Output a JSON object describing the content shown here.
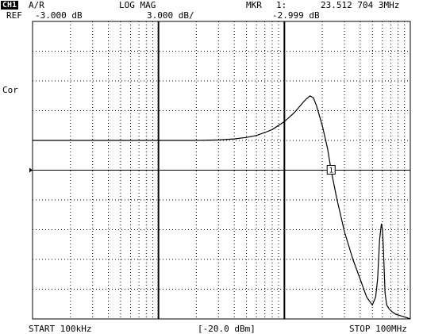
{
  "header": {
    "channel": "CH1",
    "measurement": "A/R",
    "format": "LOG MAG",
    "marker_label": "MKR",
    "marker_index": "1:",
    "marker_freq": "23.512 704 3MHz",
    "ref_label": "REF",
    "ref_value": "-3.000 dB",
    "scale": "3.000 dB/",
    "marker_value": "-2.999 dB"
  },
  "side_label": "Cor",
  "footer": {
    "start": "START 100kHz",
    "power": "[-20.0 dBm]",
    "stop": "STOP 100MHz"
  },
  "marker_badge": "1",
  "chart_data": {
    "type": "line",
    "x_scale": "log",
    "xlim_hz": [
      100000,
      100000000
    ],
    "ylim_db": [
      -18,
      12
    ],
    "grid": true,
    "reference_line_db": -3,
    "marker": {
      "freq_hz": 23512704.3,
      "value_db": -2.999
    },
    "series": [
      {
        "x_hz": [
          100000,
          200000,
          500000,
          1000000,
          2000000,
          3000000,
          4000000,
          5000000,
          6000000,
          7000000,
          8000000,
          10000000,
          12000000,
          14000000,
          15000000,
          16000000,
          17000000,
          18000000,
          20000000,
          22000000,
          23512704,
          26000000,
          30000000,
          35000000,
          40000000,
          45000000,
          50000000,
          53000000,
          55000000,
          57000000,
          59000000,
          60000000,
          61000000,
          62000000,
          63000000,
          65000000,
          68000000,
          72000000,
          76000000,
          80000000,
          85000000,
          90000000,
          95000000,
          100000000
        ],
        "y_db": [
          0.0,
          0.0,
          0.0,
          0.0,
          0.0,
          0.05,
          0.15,
          0.3,
          0.5,
          0.8,
          1.1,
          1.9,
          2.8,
          3.8,
          4.2,
          4.5,
          4.3,
          3.5,
          1.5,
          -0.8,
          -2.999,
          -5.8,
          -9.2,
          -12.0,
          -14.0,
          -15.8,
          -16.6,
          -15.8,
          -14.0,
          -10.0,
          -8.4,
          -8.9,
          -10.6,
          -13.0,
          -15.4,
          -16.6,
          -17.0,
          -17.3,
          -17.5,
          -17.6,
          -17.7,
          -17.8,
          -17.9,
          -18.0
        ]
      }
    ]
  }
}
